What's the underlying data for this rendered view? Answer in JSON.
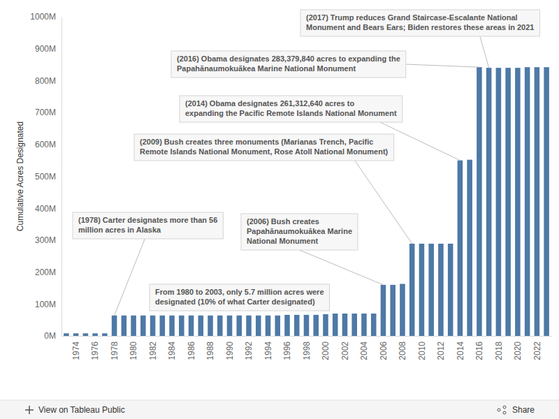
{
  "chart_data": {
    "type": "bar",
    "y_label": "Cumulative Acres Designated",
    "x": [
      1973,
      1974,
      1975,
      1976,
      1977,
      1978,
      1979,
      1980,
      1981,
      1982,
      1983,
      1984,
      1985,
      1986,
      1987,
      1988,
      1989,
      1990,
      1991,
      1992,
      1993,
      1994,
      1995,
      1996,
      1997,
      1998,
      1999,
      2000,
      2001,
      2002,
      2003,
      2004,
      2005,
      2006,
      2007,
      2008,
      2009,
      2010,
      2011,
      2012,
      2013,
      2014,
      2015,
      2016,
      2017,
      2018,
      2019,
      2020,
      2021,
      2022,
      2023
    ],
    "values": [
      8000000,
      8000000,
      8000000,
      8000000,
      8000000,
      64000000,
      64000000,
      64000000,
      64000000,
      64000000,
      64000000,
      64000000,
      64000000,
      64000000,
      64000000,
      64000000,
      64000000,
      64000000,
      64000000,
      64000000,
      64000000,
      64000000,
      64000000,
      66000000,
      66000000,
      66000000,
      66000000,
      68000000,
      70000000,
      70000000,
      70000000,
      70000000,
      70000000,
      160000000,
      160000000,
      163000000,
      289000000,
      289000000,
      289000000,
      289000000,
      289000000,
      550000000,
      552000000,
      842000000,
      840000000,
      840000000,
      840000000,
      840000000,
      842000000,
      842000000,
      842000000
    ],
    "color": "#4e79a7",
    "xlim": [
      1972.5,
      2023.5
    ],
    "xticks": [
      1974,
      1976,
      1978,
      1980,
      1982,
      1984,
      1986,
      1988,
      1990,
      1992,
      1994,
      1996,
      1998,
      2000,
      2002,
      2004,
      2006,
      2008,
      2010,
      2012,
      2014,
      2016,
      2018,
      2020,
      2022
    ],
    "ylim": [
      0,
      1000000000
    ],
    "yticks": [
      {
        "value": 0,
        "label": "0M"
      },
      {
        "value": 100000000,
        "label": "100M"
      },
      {
        "value": 200000000,
        "label": "200M"
      },
      {
        "value": 300000000,
        "label": "300M"
      },
      {
        "value": 400000000,
        "label": "400M"
      },
      {
        "value": 500000000,
        "label": "500M"
      },
      {
        "value": 600000000,
        "label": "600M"
      },
      {
        "value": 700000000,
        "label": "700M"
      },
      {
        "value": 800000000,
        "label": "800M"
      },
      {
        "value": 900000000,
        "label": "900M"
      },
      {
        "value": 1000000000,
        "label": "1000M"
      }
    ],
    "grid": false,
    "annotations": [
      {
        "lines": [
          "(1978) Carter designates more than 56",
          "million acres in Alaska"
        ],
        "x": 1978
      },
      {
        "lines": [
          "From 1980 to 2003, only 5.7 million acres were",
          "designated (10% of what Carter designated)"
        ]
      },
      {
        "lines": [
          "(2006) Bush creates",
          "Papahānaumokuākea Marine",
          "National Monument"
        ],
        "x": 2006
      },
      {
        "lines": [
          "(2009) Bush creates three monuments (Marianas Trench, Pacific",
          "Remote Islands National Monument, Rose Atoll National Monument)"
        ],
        "x": 2009
      },
      {
        "lines": [
          "(2014) Obama designates 261,312,640 acres to",
          "expanding the Pacific Remote Islands National Monument"
        ],
        "x": 2014
      },
      {
        "lines": [
          "(2016) Obama designates 283,379,840 acres to expanding the",
          "Papahānaumokuākea Marine National Monument"
        ],
        "x": 2016
      },
      {
        "lines": [
          "(2017) Trump reduces Grand Staircase-Escalante National",
          "Monument and Bears Ears; Biden restores these areas in 2021"
        ],
        "x": 2017
      }
    ]
  },
  "toolbar": {
    "link": "View on Tableau Public",
    "share": "Share"
  }
}
